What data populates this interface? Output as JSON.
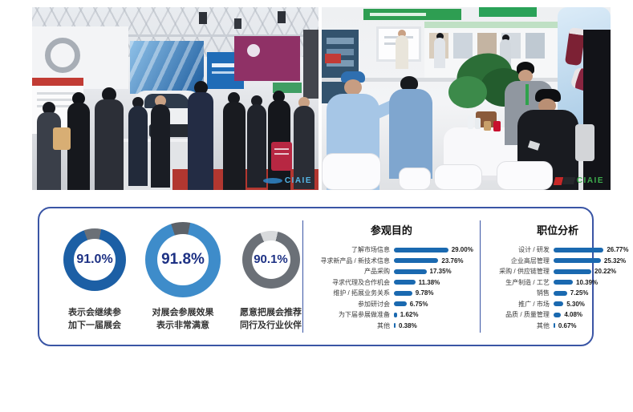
{
  "photos": {
    "watermark_left": "CIAIE",
    "watermark_right": "CIAIE"
  },
  "panel": {
    "accent_color": "#3a55a5"
  },
  "chart_data": [
    {
      "type": "donut",
      "percent_text_color": "#1d3184",
      "items": [
        {
          "value": 91.0,
          "label": "91.0%",
          "caption": "表示会继续参\n加下一届展会",
          "ring_color": "#1c5fa5",
          "rest_color": "#6b7077"
        },
        {
          "value": 91.8,
          "label": "91.8%",
          "caption": "对展会参展效果\n表示非常满意",
          "ring_color": "#3e8cca",
          "rest_color": "#5d6269"
        },
        {
          "value": 90.1,
          "label": "90.1%",
          "caption": "愿意把展会推荐\n同行及行业伙伴",
          "ring_color": "#6b7077",
          "rest_color": "#d8dadc"
        }
      ]
    },
    {
      "type": "bar",
      "title": "参观目的",
      "categories": [
        "了解市场信息",
        "寻求新产品 / 新技术信息",
        "产品采购",
        "寻求代理及合作机会",
        "维护 / 拓展业务关系",
        "参加研讨会",
        "为下届参展做准备",
        "其他"
      ],
      "values": [
        29.0,
        23.76,
        17.35,
        11.38,
        9.78,
        6.75,
        1.62,
        0.38
      ],
      "value_labels": [
        "29.00%",
        "23.76%",
        "17.35%",
        "11.38%",
        "9.78%",
        "6.75%",
        "1.62%",
        "0.38%"
      ],
      "bar_color": "#1a69b0",
      "xlim": [
        0,
        30
      ],
      "grid": false,
      "legend": false
    },
    {
      "type": "bar",
      "title": "职位分析",
      "categories": [
        "设计 / 研发",
        "企业高层管理",
        "采购 / 供应链管理",
        "生产制造 / 工艺",
        "销售",
        "推广 / 市场",
        "品质 / 质量管理",
        "其他"
      ],
      "values": [
        26.77,
        25.32,
        20.22,
        10.39,
        7.25,
        5.3,
        4.08,
        0.67
      ],
      "value_labels": [
        "26.77%",
        "25.32%",
        "20.22%",
        "10.39%",
        "7.25%",
        "5.30%",
        "4.08%",
        "0.67%"
      ],
      "bar_color": "#1a69b0",
      "xlim": [
        0,
        30
      ],
      "grid": false,
      "legend": false
    }
  ]
}
